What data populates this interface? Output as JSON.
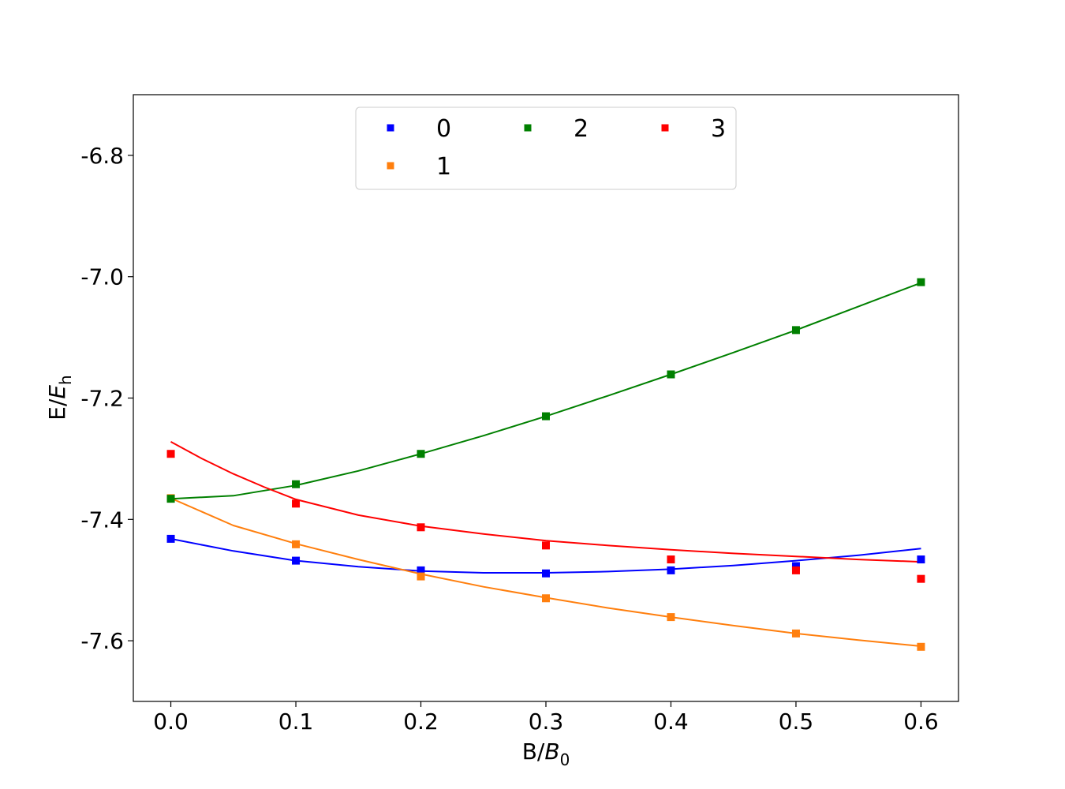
{
  "chart_data": {
    "type": "scatter",
    "xlabel": {
      "base": "B/",
      "math": "B",
      "sub": "0"
    },
    "ylabel": {
      "base": "E/",
      "math": "E",
      "sub": "h"
    },
    "xlim": [
      -0.03,
      0.63
    ],
    "ylim": [
      -7.7,
      -6.7
    ],
    "xticks": [
      0.0,
      0.1,
      0.2,
      0.3,
      0.4,
      0.5,
      0.6
    ],
    "xtick_labels": [
      "0.0",
      "0.1",
      "0.2",
      "0.3",
      "0.4",
      "0.5",
      "0.6"
    ],
    "yticks": [
      -6.8,
      -7.0,
      -7.2,
      -7.4,
      -7.6
    ],
    "ytick_labels": [
      "-6.8",
      "-7.0",
      "-7.2",
      "-7.4",
      "-7.6"
    ],
    "grid": false,
    "legend_position": "upper-center",
    "x": [
      0.0,
      0.1,
      0.2,
      0.3,
      0.4,
      0.5,
      0.6
    ],
    "series": [
      {
        "name": "0",
        "color": "#0000ff",
        "points": [
          -7.432,
          -7.468,
          -7.484,
          -7.489,
          -7.484,
          -7.477,
          -7.466
        ],
        "fit": [
          [
            0.0,
            -7.432
          ],
          [
            0.05,
            -7.452
          ],
          [
            0.1,
            -7.468
          ],
          [
            0.15,
            -7.478
          ],
          [
            0.2,
            -7.485
          ],
          [
            0.25,
            -7.488
          ],
          [
            0.3,
            -7.488
          ],
          [
            0.35,
            -7.486
          ],
          [
            0.4,
            -7.482
          ],
          [
            0.45,
            -7.476
          ],
          [
            0.5,
            -7.468
          ],
          [
            0.55,
            -7.459
          ],
          [
            0.6,
            -7.448
          ]
        ]
      },
      {
        "name": "1",
        "color": "#ff7f0e",
        "points": [
          -7.365,
          -7.441,
          -7.494,
          -7.53,
          -7.561,
          -7.588,
          -7.61
        ],
        "fit": [
          [
            0.0,
            -7.365
          ],
          [
            0.05,
            -7.41
          ],
          [
            0.1,
            -7.44
          ],
          [
            0.15,
            -7.466
          ],
          [
            0.2,
            -7.49
          ],
          [
            0.25,
            -7.511
          ],
          [
            0.3,
            -7.529
          ],
          [
            0.35,
            -7.546
          ],
          [
            0.4,
            -7.561
          ],
          [
            0.45,
            -7.575
          ],
          [
            0.5,
            -7.588
          ],
          [
            0.55,
            -7.599
          ],
          [
            0.6,
            -7.609
          ]
        ]
      },
      {
        "name": "2",
        "color": "#008000",
        "points": [
          -7.366,
          -7.342,
          -7.292,
          -7.23,
          -7.161,
          -7.088,
          -7.009
        ],
        "fit": [
          [
            0.0,
            -7.366
          ],
          [
            0.05,
            -7.361
          ],
          [
            0.1,
            -7.344
          ],
          [
            0.15,
            -7.32
          ],
          [
            0.2,
            -7.292
          ],
          [
            0.25,
            -7.262
          ],
          [
            0.3,
            -7.23
          ],
          [
            0.35,
            -7.196
          ],
          [
            0.4,
            -7.161
          ],
          [
            0.45,
            -7.125
          ],
          [
            0.5,
            -7.088
          ],
          [
            0.55,
            -7.049
          ],
          [
            0.6,
            -7.01
          ]
        ]
      },
      {
        "name": "3",
        "color": "#ff0000",
        "points": [
          -7.292,
          -7.374,
          -7.413,
          -7.443,
          -7.466,
          -7.484,
          -7.498
        ],
        "fit": [
          [
            0.0,
            -7.272
          ],
          [
            0.025,
            -7.3
          ],
          [
            0.05,
            -7.325
          ],
          [
            0.075,
            -7.347
          ],
          [
            0.1,
            -7.367
          ],
          [
            0.15,
            -7.393
          ],
          [
            0.2,
            -7.411
          ],
          [
            0.25,
            -7.424
          ],
          [
            0.3,
            -7.435
          ],
          [
            0.35,
            -7.443
          ],
          [
            0.4,
            -7.45
          ],
          [
            0.45,
            -7.456
          ],
          [
            0.5,
            -7.461
          ],
          [
            0.55,
            -7.466
          ],
          [
            0.6,
            -7.47
          ]
        ]
      }
    ]
  }
}
